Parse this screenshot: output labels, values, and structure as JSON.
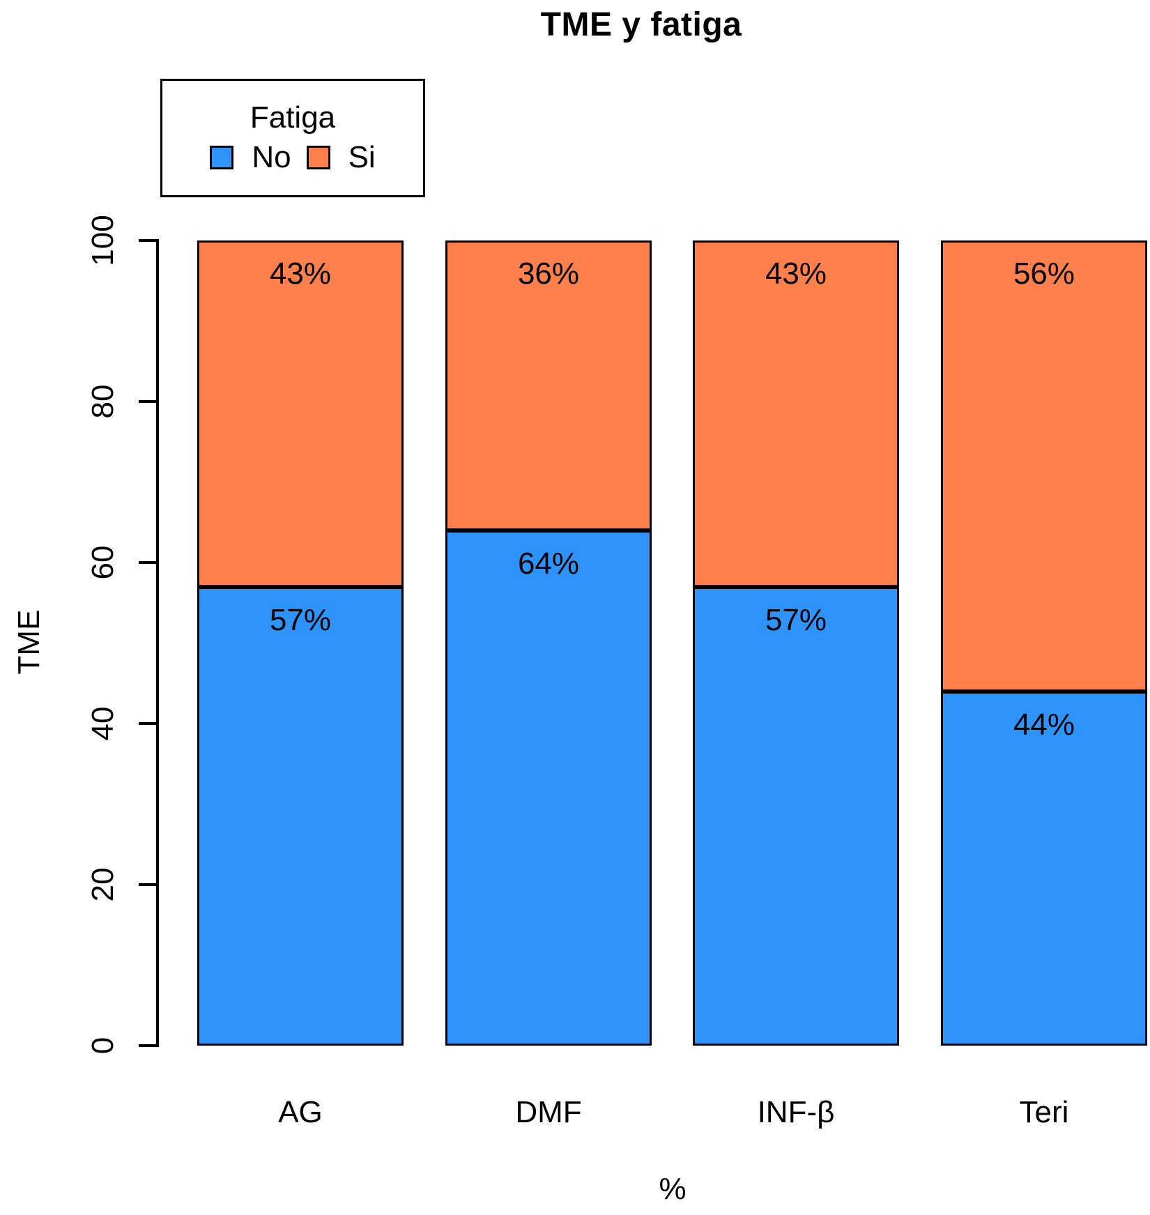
{
  "title": "TME y fatiga",
  "legend": {
    "title": "Fatiga",
    "items": [
      {
        "label": "No",
        "color": "#2E94FC"
      },
      {
        "label": "Si",
        "color": "#FF7F4D"
      }
    ]
  },
  "axes": {
    "y_label": "TME",
    "x_label": "%"
  },
  "chart_data": {
    "type": "bar",
    "stacked": true,
    "title": "TME y fatiga",
    "xlabel": "%",
    "ylabel": "TME",
    "ylim": [
      0,
      100
    ],
    "yticks": [
      0,
      20,
      40,
      60,
      80,
      100
    ],
    "ytick_labels_top_to_bottom": [
      "100",
      "80",
      "60",
      "40",
      "20",
      "0"
    ],
    "grid": false,
    "legend_title": "Fatiga",
    "legend_position": "top-left",
    "categories": [
      "AG",
      "DMF",
      "INF-β",
      "Teri"
    ],
    "series": [
      {
        "name": "No",
        "color": "#2E94FC",
        "values": [
          57,
          64,
          57,
          44
        ]
      },
      {
        "name": "Si",
        "color": "#FF7F4D",
        "values": [
          43,
          36,
          43,
          56
        ]
      }
    ],
    "data_labels": {
      "no": [
        "57%",
        "64%",
        "57%",
        "44%"
      ],
      "si": [
        "43%",
        "36%",
        "43%",
        "56%"
      ]
    }
  }
}
